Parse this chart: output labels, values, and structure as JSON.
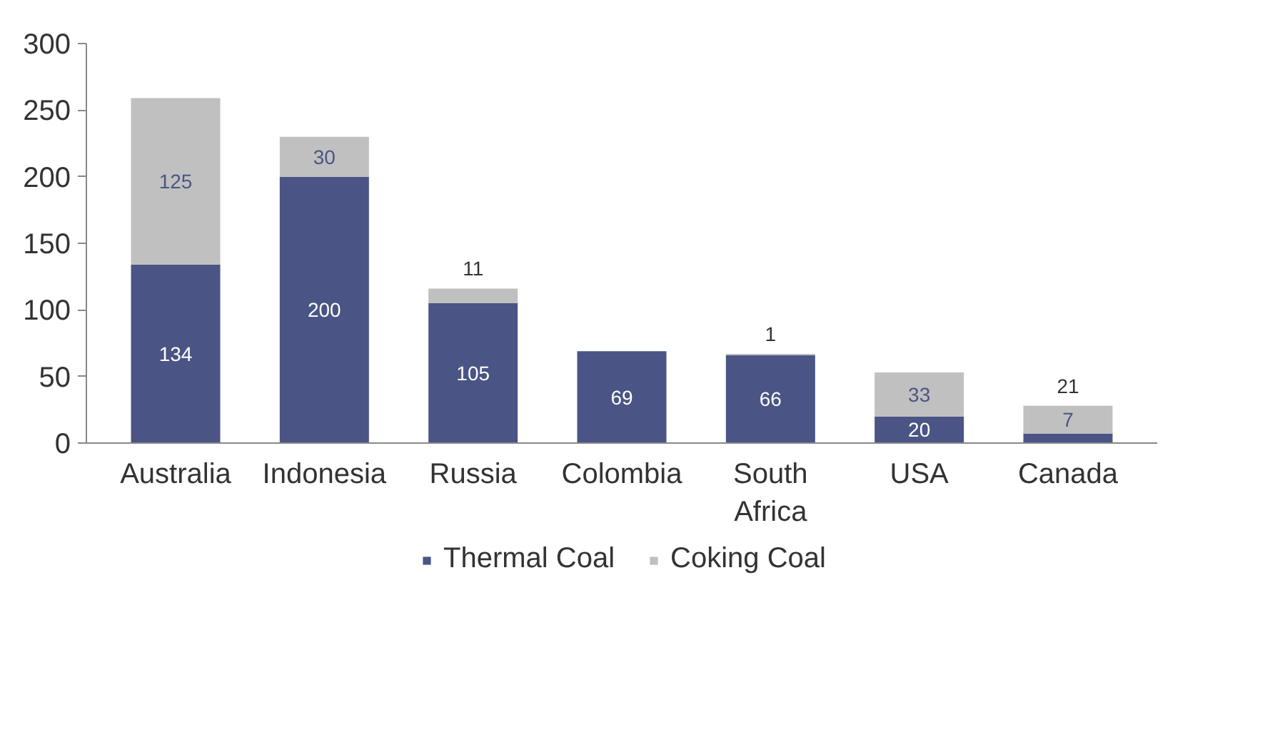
{
  "chart_data": {
    "type": "bar",
    "stacked": true,
    "categories": [
      "Australia",
      "Indonesia",
      "Russia",
      "Colombia",
      "South Africa",
      "USA",
      "Canada"
    ],
    "series": [
      {
        "name": "Thermal Coal",
        "color": "#4a5585",
        "values": [
          134,
          200,
          105,
          69,
          66,
          20,
          7
        ],
        "value_labels": [
          "134",
          "200",
          "105",
          "69",
          "66",
          "20",
          "7"
        ]
      },
      {
        "name": "Coking Coal",
        "color": "#c0c0c0",
        "values": [
          125,
          30,
          11,
          0,
          1,
          33,
          21
        ],
        "value_labels": [
          "125",
          "30",
          "11",
          null,
          "1",
          "33",
          "21"
        ]
      }
    ],
    "ylim": [
      0,
      300
    ],
    "yticks": [
      0,
      50,
      100,
      150,
      200,
      250,
      300
    ],
    "grid": false,
    "legend": "bottom"
  }
}
